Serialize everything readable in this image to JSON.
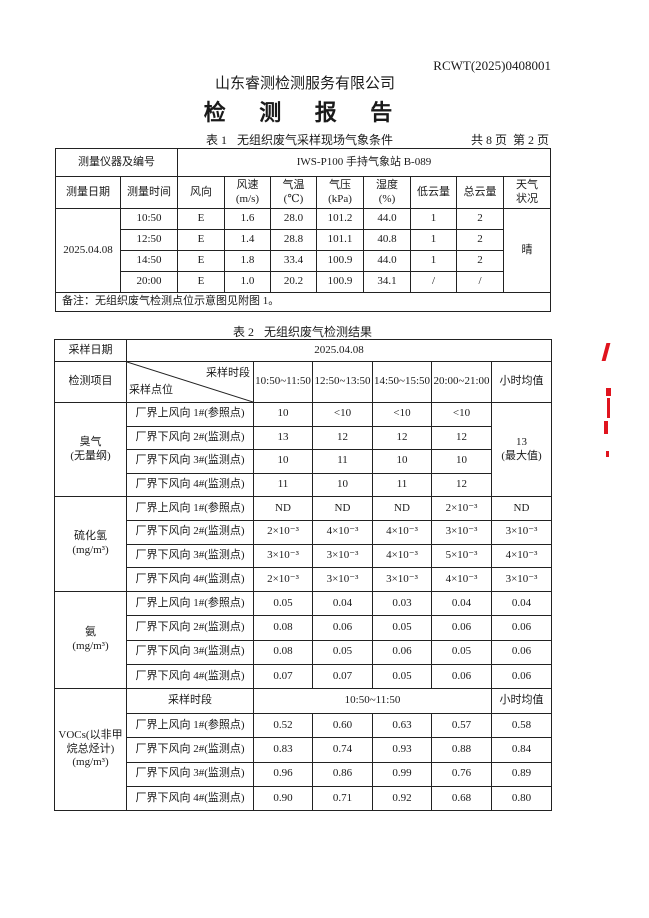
{
  "header": {
    "report_no": "RCWT(2025)0408001",
    "company": "山东睿测检测服务有限公司",
    "title": "检 测 报 告",
    "pages_total": "共 8 页",
    "page_current": "第 2 页"
  },
  "table1": {
    "number": "表 1",
    "caption": "无组织废气采样现场气象条件",
    "instrument_label": "测量仪器及编号",
    "instrument_value": "IWS-P100 手持气象站 B-089",
    "headers": [
      "测量日期",
      "测量时间",
      "风向",
      "风速\n(m/s)",
      "气温\n(℃)",
      "气压\n(kPa)",
      "湿度\n(%)",
      "低云量",
      "总云量",
      "天气\n状况"
    ],
    "date": "2025.04.08",
    "weather": "晴",
    "rows": [
      [
        "10:50",
        "E",
        "1.6",
        "28.0",
        "101.2",
        "44.0",
        "1",
        "2"
      ],
      [
        "12:50",
        "E",
        "1.4",
        "28.8",
        "101.1",
        "40.8",
        "1",
        "2"
      ],
      [
        "14:50",
        "E",
        "1.8",
        "33.4",
        "100.9",
        "44.0",
        "1",
        "2"
      ],
      [
        "20:00",
        "E",
        "1.0",
        "20.2",
        "100.9",
        "34.1",
        "/",
        "/"
      ]
    ],
    "remark": "备注：无组织废气检测点位示意图见附图 1。"
  },
  "table2": {
    "number": "表 2",
    "caption": "无组织废气检测结果",
    "date_label": "采样日期",
    "date_value": "2025.04.08",
    "item_label": "检测项目",
    "period_label": "采样时段",
    "point_label": "采样点位",
    "periods": [
      "10:50~11:50",
      "12:50~13:50",
      "14:50~15:50",
      "20:00~21:00"
    ],
    "avg_label": "小时均值",
    "points": [
      "厂界上风向 1#(参照点)",
      "厂界下风向 2#(监测点)",
      "厂界下风向 3#(监测点)",
      "厂界下风向 4#(监测点)"
    ],
    "groups": [
      {
        "name": "臭气",
        "unit": "(无量纲)",
        "rows": [
          [
            "10",
            "<10",
            "<10",
            "<10"
          ],
          [
            "13",
            "12",
            "12",
            "12"
          ],
          [
            "10",
            "11",
            "10",
            "10"
          ],
          [
            "11",
            "10",
            "11",
            "12"
          ]
        ],
        "avg": "13\n(最大值)"
      },
      {
        "name": "硫化氢",
        "unit": "(mg/m³)",
        "rows": [
          [
            "ND",
            "ND",
            "ND",
            "2×10⁻³"
          ],
          [
            "2×10⁻³",
            "4×10⁻³",
            "4×10⁻³",
            "3×10⁻³"
          ],
          [
            "3×10⁻³",
            "3×10⁻³",
            "4×10⁻³",
            "5×10⁻³"
          ],
          [
            "2×10⁻³",
            "3×10⁻³",
            "3×10⁻³",
            "4×10⁻³"
          ]
        ],
        "avgs": [
          "ND",
          "3×10⁻³",
          "4×10⁻³",
          "3×10⁻³"
        ]
      },
      {
        "name": "氨",
        "unit": "(mg/m³)",
        "rows": [
          [
            "0.05",
            "0.04",
            "0.03",
            "0.04"
          ],
          [
            "0.08",
            "0.06",
            "0.05",
            "0.06"
          ],
          [
            "0.08",
            "0.05",
            "0.06",
            "0.05"
          ],
          [
            "0.07",
            "0.07",
            "0.05",
            "0.06"
          ]
        ],
        "avgs": [
          "0.04",
          "0.06",
          "0.06",
          "0.06"
        ]
      }
    ],
    "vocs": {
      "name": "VOCs(以非甲烷总烃计)\n(mg/m³)",
      "period_label": "采样时段",
      "period": "10:50~11:50",
      "avg_label": "小时均值",
      "rows": [
        [
          "0.52",
          "0.60",
          "0.63",
          "0.57"
        ],
        [
          "0.83",
          "0.74",
          "0.93",
          "0.88"
        ],
        [
          "0.96",
          "0.86",
          "0.99",
          "0.76"
        ],
        [
          "0.90",
          "0.71",
          "0.92",
          "0.68"
        ]
      ],
      "avgs": [
        "0.58",
        "0.84",
        "0.89",
        "0.80"
      ]
    }
  },
  "seal_color": "#e0141e"
}
